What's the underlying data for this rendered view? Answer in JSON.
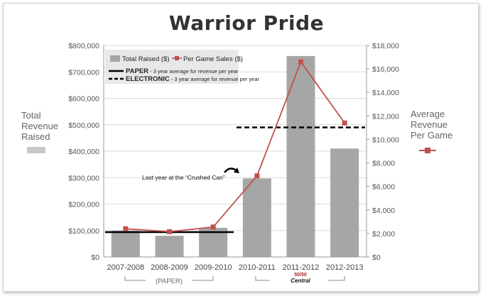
{
  "chart_data": {
    "type": "bar",
    "title": "Warrior Pride",
    "categories": [
      "2007-2008",
      "2008-2009",
      "2009-2010",
      "2010-2011",
      "2011-2012",
      "2012-2013"
    ],
    "left_axis": {
      "label_lines": [
        "Total",
        "Revenue",
        "Raised"
      ],
      "range": [
        0,
        800000
      ],
      "ticks": [
        0,
        100000,
        200000,
        300000,
        400000,
        500000,
        600000,
        700000,
        800000
      ],
      "tick_labels": [
        "$0",
        "$100,000",
        "$200,000",
        "$300,000",
        "$400,000",
        "$500,000",
        "$600,000",
        "$700,000",
        "$800,000"
      ]
    },
    "right_axis": {
      "label_lines": [
        "Average",
        "Revenue",
        "Per Game"
      ],
      "range": [
        0,
        18000
      ],
      "ticks": [
        0,
        2000,
        4000,
        6000,
        8000,
        10000,
        12000,
        14000,
        16000,
        18000
      ],
      "tick_labels": [
        "$0",
        "$2,000",
        "$4,000",
        "$6,000",
        "$8,000",
        "$10,000",
        "$12,000",
        "$14,000",
        "$16,000",
        "$18,000"
      ]
    },
    "series": [
      {
        "name": "Total Raised ($)",
        "type": "bar",
        "axis": "left",
        "color": "#a6a6a6",
        "values": [
          100000,
          80000,
          110000,
          297000,
          760000,
          410000
        ]
      },
      {
        "name": "Per Game Sales ($)",
        "type": "line",
        "axis": "right",
        "color": "#c0504d",
        "values": [
          2400,
          2150,
          2550,
          6900,
          16600,
          11400
        ]
      }
    ],
    "reference_lines": [
      {
        "name": "PAPER",
        "description": "3 year average for revenue per year",
        "style": "solid",
        "axis": "left",
        "value": 94000,
        "from_category": 0,
        "to_category": 2
      },
      {
        "name": "ELECTRONIC",
        "description": "3 year average for revenue per year",
        "style": "dashed",
        "axis": "left",
        "value": 490000,
        "from_category": 3,
        "to_category": 5
      }
    ],
    "annotation": "Last year at the “Crushed Can”",
    "group_labels": {
      "paper": "(PAPER)",
      "electronic_logo_top": "50/50",
      "electronic_logo_bottom": "Central"
    },
    "grid": true,
    "legend_position": "top-left"
  }
}
